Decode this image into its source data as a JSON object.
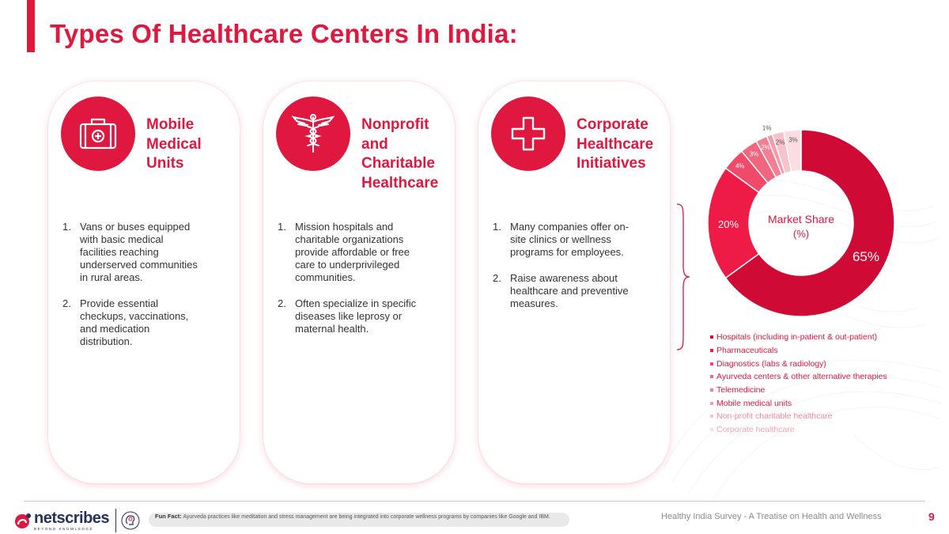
{
  "title": "Types Of Healthcare Centers In India:",
  "colors": {
    "accent": "#e0173f",
    "text": "#333333",
    "brand": "#28305e"
  },
  "cards": [
    {
      "icon": "medical-kit-icon",
      "title_lines": [
        "Mobile",
        "Medical",
        "Units"
      ],
      "items": [
        {
          "num": "1.",
          "lines": [
            "Vans or buses equipped",
            "with basic medical",
            "facilities reaching",
            "underserved communities",
            "in rural areas."
          ]
        },
        {
          "num": "2.",
          "lines": [
            "Provide essential",
            "checkups, vaccinations,",
            "and medication",
            "distribution."
          ]
        }
      ]
    },
    {
      "icon": "caduceus-icon",
      "title_lines": [
        "Nonprofit",
        "and",
        "Charitable",
        "Healthcare"
      ],
      "items": [
        {
          "num": "1.",
          "lines": [
            "Mission hospitals and",
            "charitable organizations",
            "provide affordable or free",
            "care to underprivileged",
            "communities."
          ]
        },
        {
          "num": "2.",
          "lines": [
            "Often specialize in specific",
            "diseases like leprosy or",
            "maternal health."
          ]
        }
      ]
    },
    {
      "icon": "plus-cross-icon",
      "title_lines": [
        "Corporate",
        "Healthcare",
        "Initiatives"
      ],
      "items": [
        {
          "num": "1.",
          "lines": [
            "Many companies offer on-",
            "site clinics or wellness",
            "programs for employees."
          ]
        },
        {
          "num": "2.",
          "lines": [
            "Raise awareness about",
            "healthcare and preventive",
            "measures."
          ]
        }
      ]
    }
  ],
  "chart_data": {
    "type": "pie",
    "donut": true,
    "center_label_lines": [
      "Market Share",
      "(%)"
    ],
    "categories": [
      "Hospitals (including in-patient & out-patient)",
      "Pharmaceuticals",
      "Diagnostics (labs & radiology)",
      "Ayurveda centers & other alternative therapies",
      "Telemedicine",
      "Mobile medical units",
      "Non-profit charitable healthcare",
      "Corporate healthcare"
    ],
    "values": [
      65,
      20,
      4,
      3,
      2,
      1,
      2,
      3
    ],
    "data_labels": [
      "65%",
      "20%",
      "4%",
      "3%",
      "2%",
      "1%",
      "2%",
      "3%"
    ],
    "colors": [
      "#cf0a35",
      "#ee1b46",
      "#f04a6a",
      "#f2657f",
      "#f37f95",
      "#f599ab",
      "#f8c2cd",
      "#fbdde3"
    ],
    "legend_position": "bottom"
  },
  "footer": {
    "brand_name": "netscribes",
    "brand_tagline": "BEYOND KNOWLEDGE",
    "fun_fact_label": "Fun Fact:",
    "fun_fact_text": "Ayurveda practices like meditation and stress management are being integrated into corporate wellness programs by companies like Google and IBM.",
    "survey_title": "Healthy India Survey - A Treatise on Health and Wellness",
    "page_number": "9"
  }
}
